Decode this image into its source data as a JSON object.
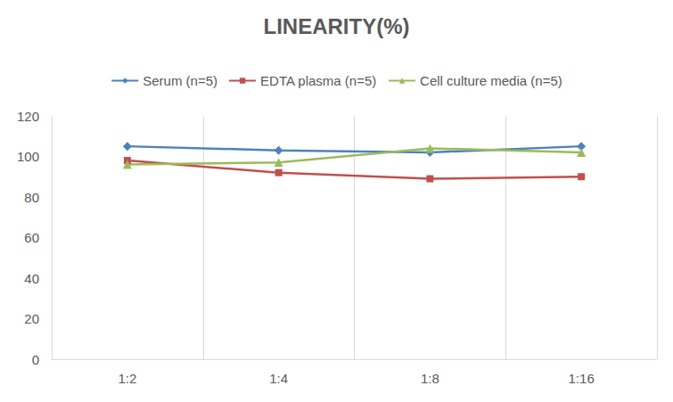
{
  "chart_data": {
    "type": "line",
    "title": "LINEARITY(%)",
    "categories": [
      "1:2",
      "1:4",
      "1:8",
      "1:16"
    ],
    "series": [
      {
        "name": "Serum (n=5)",
        "color": "#4f81bd",
        "marker": "diamond",
        "values": [
          105,
          103,
          102,
          105
        ]
      },
      {
        "name": "EDTA plasma (n=5)",
        "color": "#c0504d",
        "marker": "square",
        "values": [
          98,
          92,
          89,
          90
        ]
      },
      {
        "name": "Cell culture media (n=5)",
        "color": "#9bbb59",
        "marker": "triangle",
        "values": [
          96,
          97,
          104,
          102
        ]
      }
    ],
    "ylim": [
      0,
      120
    ],
    "yticks": [
      0,
      20,
      40,
      60,
      80,
      100,
      120
    ],
    "grid": true,
    "legend": "top"
  }
}
